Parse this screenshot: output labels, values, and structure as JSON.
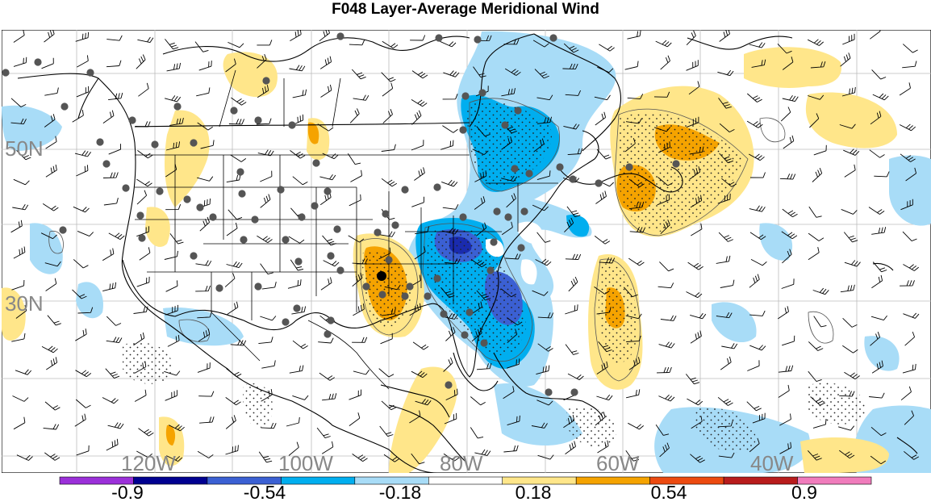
{
  "title": "F048 Layer-Average Meridional Wind",
  "map": {
    "lat_labels": [
      "50N",
      "30N"
    ],
    "lon_labels": [
      "120W",
      "100W",
      "80W",
      "60W",
      "40W"
    ]
  },
  "colorbar": {
    "colors": [
      "#9b30d9",
      "#000090",
      "#3b60d3",
      "#00aeef",
      "#a8dcf7",
      "#ffffff",
      "#ffe68a",
      "#f5a300",
      "#ec4a10",
      "#b81c1c",
      "#f07cbc"
    ],
    "tick_labels": [
      "-0.9",
      "-0.54",
      "-0.18",
      "0.18",
      "0.54",
      "0.9"
    ]
  }
}
